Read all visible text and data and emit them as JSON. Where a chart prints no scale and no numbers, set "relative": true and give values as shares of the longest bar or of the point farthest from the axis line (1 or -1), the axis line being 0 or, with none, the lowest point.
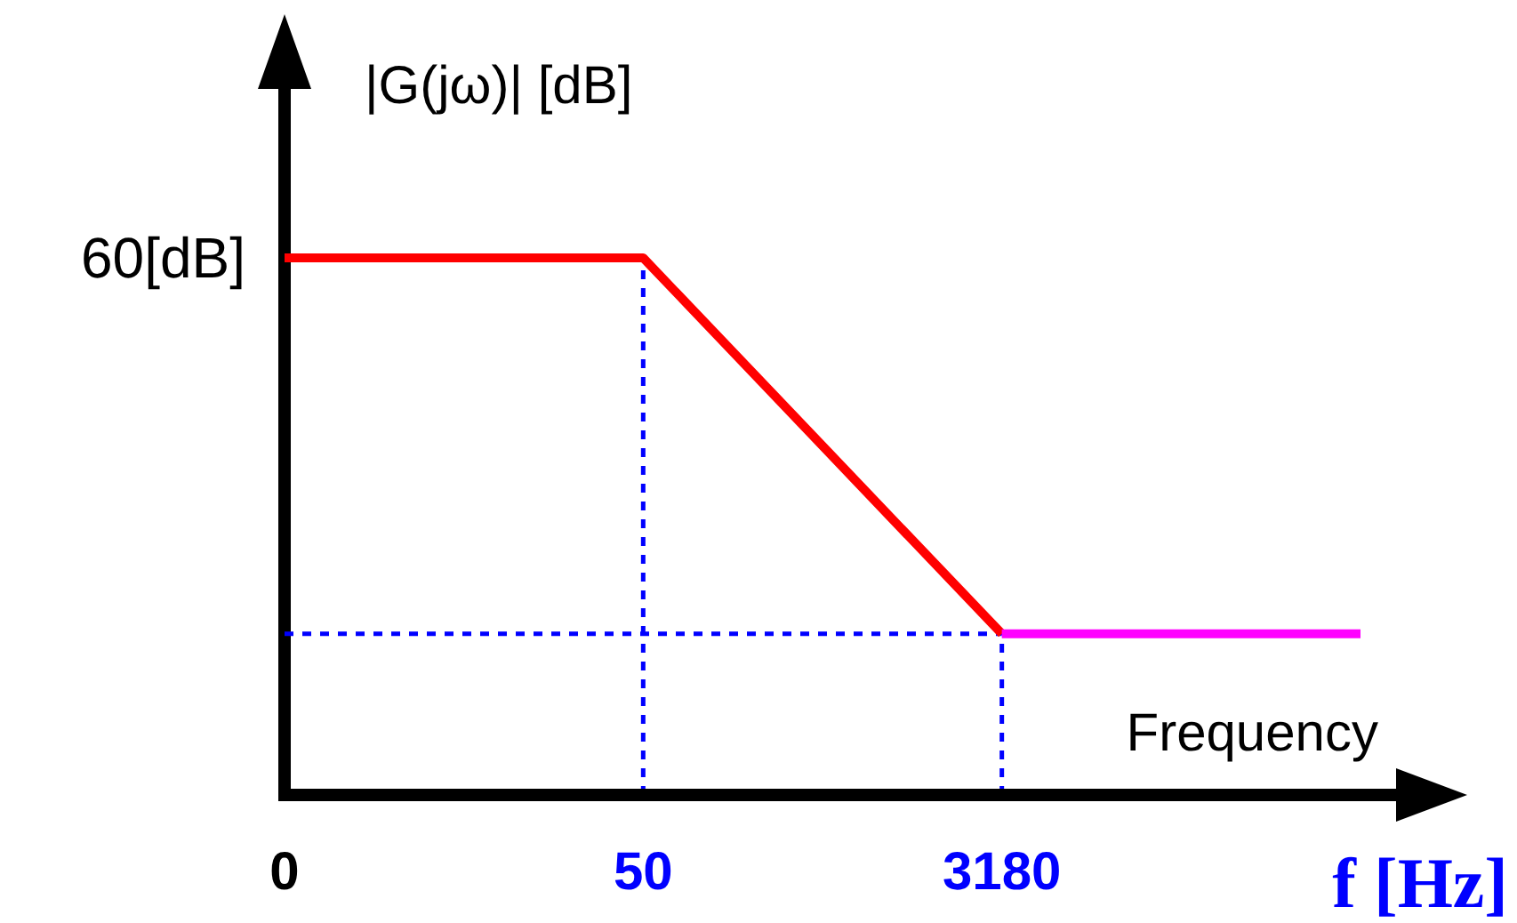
{
  "chart_data": {
    "type": "line",
    "relative": true,
    "ylabel": "|G(jω)| [dB]",
    "xlabel": "f [Hz]",
    "categories": [
      "0",
      "50",
      "3180",
      null
    ],
    "series": [
      {
        "color": "#ff0000",
        "values": [
          1,
          1,
          0.3,
          null
        ]
      },
      {
        "color": "#ff00ff",
        "values": [
          null,
          null,
          0.3,
          0.3
        ]
      }
    ],
    "ref_lines": [
      {
        "axis": "x",
        "value": "50",
        "color": "#0000ff",
        "line_style": "dotted"
      },
      {
        "axis": "x",
        "value": "3180",
        "color": "#0000ff",
        "line_style": "dotted"
      },
      {
        "axis": "y",
        "value": 0.3,
        "color": "#0000ff",
        "line_style": "dotted"
      }
    ],
    "annotations": [
      "60[dB]",
      "Frequency"
    ],
    "grid": false,
    "marker": "none",
    "line_style": "solid"
  }
}
